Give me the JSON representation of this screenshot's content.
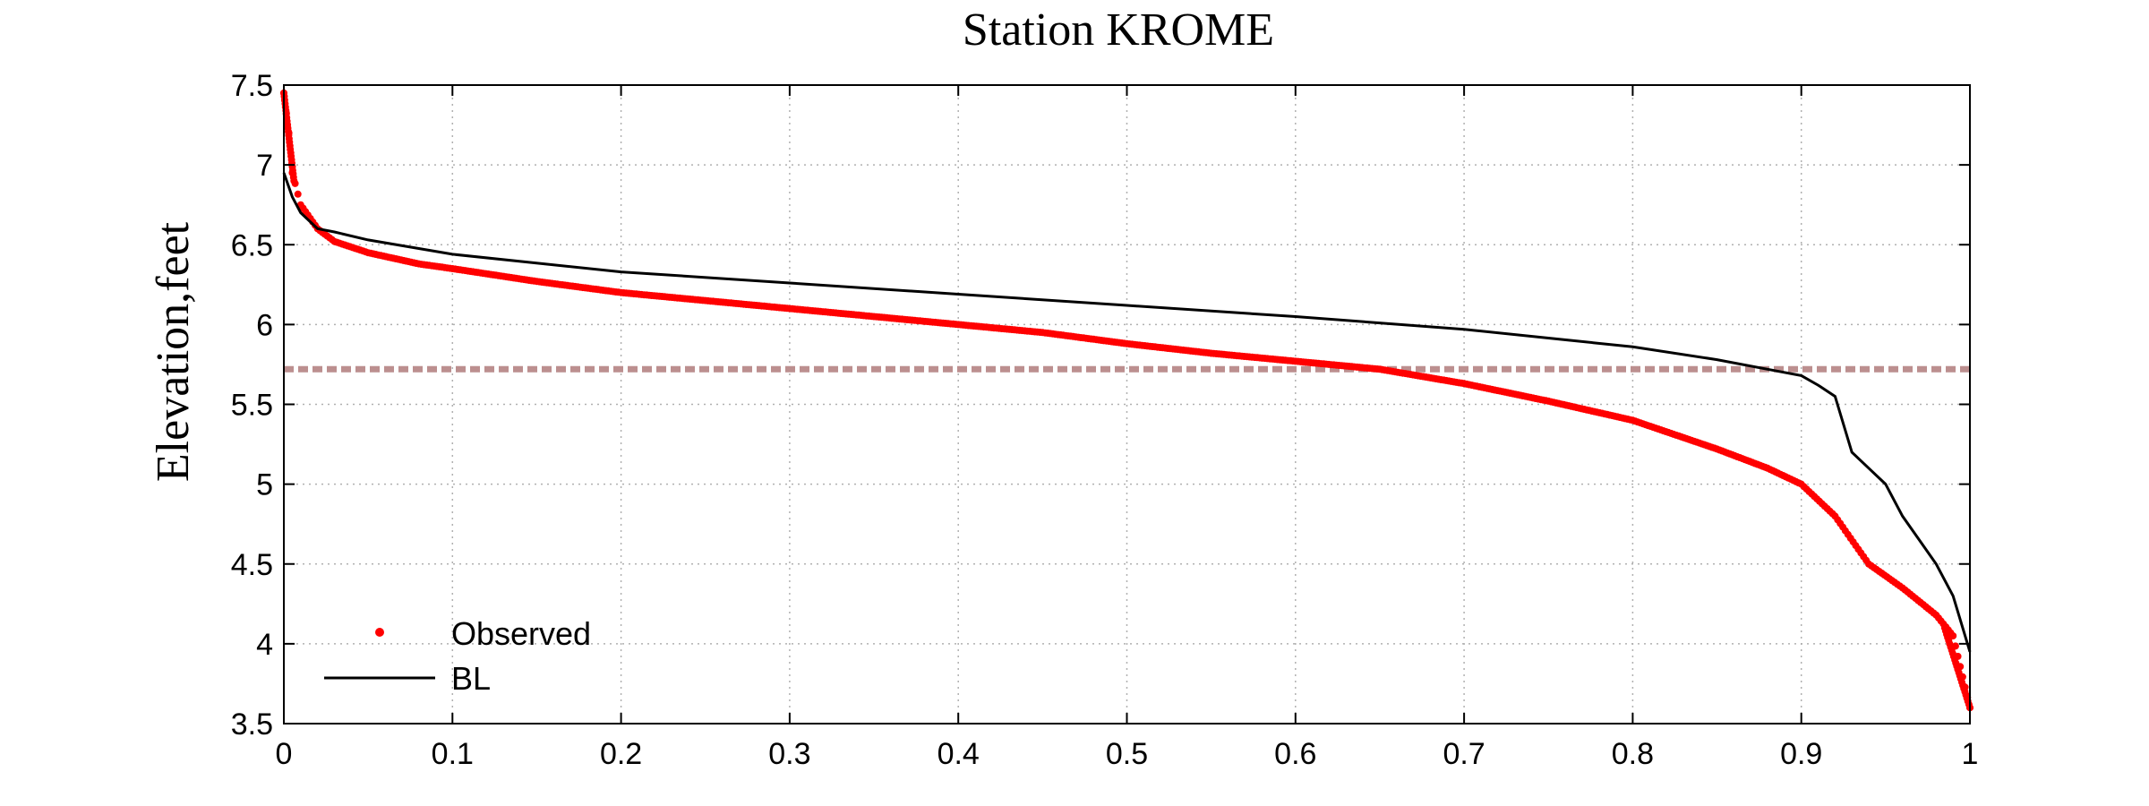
{
  "chart_data": {
    "type": "scatter",
    "title": "Station KROME",
    "xlabel": "",
    "ylabel": "Elevation,feet",
    "xlim": [
      0,
      1
    ],
    "ylim": [
      3.5,
      7.5
    ],
    "xticks": [
      "0",
      "0.1",
      "0.2",
      "0.3",
      "0.4",
      "0.5",
      "0.6",
      "0.7",
      "0.8",
      "0.9",
      "1"
    ],
    "yticks": [
      "3.5",
      "4",
      "4.5",
      "5",
      "5.5",
      "6",
      "6.5",
      "7",
      "7.5"
    ],
    "grid": true,
    "legend_position": "bottom-left",
    "reference_line": {
      "y": 5.72,
      "color": "#bc8f8f",
      "style": "dashed"
    },
    "series": [
      {
        "name": "Observed",
        "marker": "dot",
        "color": "#ff0000",
        "x": [
          0,
          0.003,
          0.005,
          0.01,
          0.02,
          0.03,
          0.05,
          0.08,
          0.1,
          0.15,
          0.2,
          0.25,
          0.3,
          0.35,
          0.4,
          0.45,
          0.5,
          0.55,
          0.6,
          0.65,
          0.7,
          0.75,
          0.8,
          0.85,
          0.88,
          0.9,
          0.92,
          0.94,
          0.96,
          0.98,
          0.99,
          1.0
        ],
        "y": [
          7.45,
          7.2,
          6.95,
          6.75,
          6.6,
          6.52,
          6.45,
          6.38,
          6.35,
          6.27,
          6.2,
          6.15,
          6.1,
          6.05,
          6.0,
          5.95,
          5.88,
          5.82,
          5.77,
          5.72,
          5.63,
          5.52,
          5.4,
          5.22,
          5.1,
          5.0,
          4.8,
          4.5,
          4.35,
          4.18,
          4.05,
          3.6
        ]
      },
      {
        "name": "BL",
        "marker": "line",
        "color": "#000000",
        "x": [
          0,
          0.005,
          0.01,
          0.02,
          0.03,
          0.05,
          0.1,
          0.2,
          0.3,
          0.4,
          0.5,
          0.6,
          0.7,
          0.8,
          0.85,
          0.88,
          0.9,
          0.91,
          0.92,
          0.93,
          0.94,
          0.95,
          0.96,
          0.97,
          0.98,
          0.99,
          1.0
        ],
        "y": [
          6.95,
          6.8,
          6.7,
          6.6,
          6.58,
          6.53,
          6.44,
          6.33,
          6.26,
          6.19,
          6.12,
          6.05,
          5.97,
          5.86,
          5.78,
          5.72,
          5.68,
          5.62,
          5.55,
          5.2,
          5.1,
          5.0,
          4.8,
          4.65,
          4.5,
          4.3,
          3.95
        ]
      }
    ]
  }
}
